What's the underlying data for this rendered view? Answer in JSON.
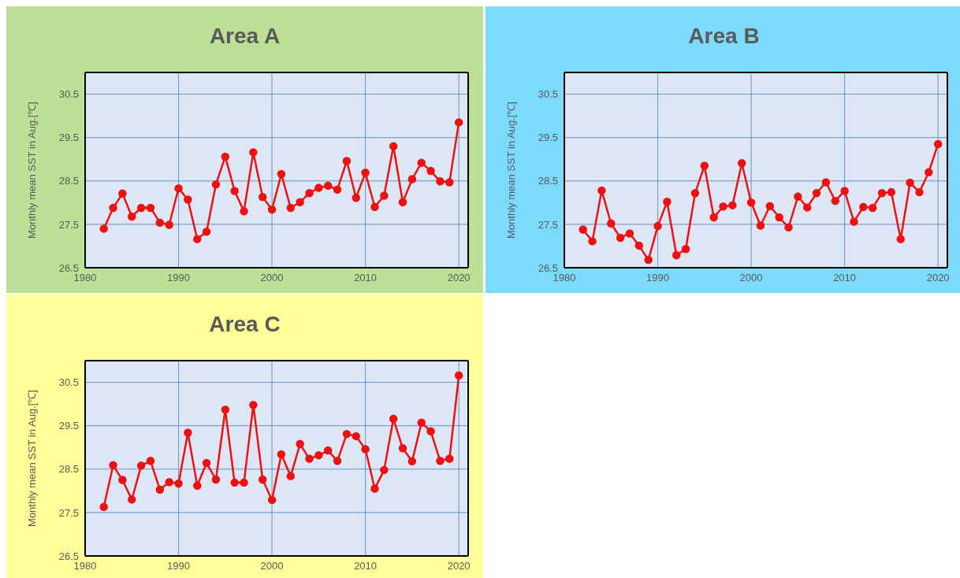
{
  "chart_data": [
    {
      "type": "line",
      "title": "Area A",
      "ylabel": "Monthly mean SST in Aug.[℃]",
      "xlim": [
        1980,
        2021
      ],
      "xticks": [
        1980,
        1990,
        2000,
        2010,
        2020
      ],
      "ylim": [
        26.5,
        31
      ],
      "yticks": [
        26.5,
        27.5,
        28.5,
        29.5,
        30.5
      ],
      "grid": true,
      "marker": "circle",
      "line_style": "solid",
      "legend": false,
      "x": [
        1982,
        1983,
        1984,
        1985,
        1986,
        1987,
        1988,
        1989,
        1990,
        1991,
        1992,
        1993,
        1994,
        1995,
        1996,
        1997,
        1998,
        1999,
        2000,
        2001,
        2002,
        2003,
        2004,
        2005,
        2006,
        2007,
        2008,
        2009,
        2010,
        2011,
        2012,
        2013,
        2014,
        2015,
        2016,
        2017,
        2018,
        2019,
        2020
      ],
      "series": [
        {
          "color": "#ee1111",
          "values": [
            27.4,
            27.88,
            28.21,
            27.68,
            27.88,
            27.88,
            27.54,
            27.49,
            28.33,
            28.07,
            27.16,
            27.33,
            28.42,
            29.06,
            28.27,
            27.8,
            29.16,
            28.13,
            27.84,
            28.66,
            27.88,
            28.01,
            28.22,
            28.34,
            28.39,
            28.3,
            28.96,
            28.11,
            28.69,
            27.9,
            28.16,
            29.3,
            28.01,
            28.54,
            28.92,
            28.73,
            28.49,
            28.47,
            29.85
          ]
        }
      ]
    },
    {
      "type": "line",
      "title": "Area B",
      "ylabel": "Monthly mean SST in Aug.[℃]",
      "xlim": [
        1980,
        2021
      ],
      "xticks": [
        1980,
        1990,
        2000,
        2010,
        2020
      ],
      "ylim": [
        26.5,
        31
      ],
      "yticks": [
        26.5,
        27.5,
        28.5,
        29.5,
        30.5
      ],
      "grid": true,
      "marker": "circle",
      "line_style": "solid",
      "legend": false,
      "x": [
        1982,
        1983,
        1984,
        1985,
        1986,
        1987,
        1988,
        1989,
        1990,
        1991,
        1992,
        1993,
        1994,
        1995,
        1996,
        1997,
        1998,
        1999,
        2000,
        2001,
        2002,
        2003,
        2004,
        2005,
        2006,
        2007,
        2008,
        2009,
        2010,
        2011,
        2012,
        2013,
        2014,
        2015,
        2016,
        2017,
        2018,
        2019,
        2020
      ],
      "series": [
        {
          "color": "#ee1111",
          "values": [
            27.38,
            27.11,
            28.28,
            27.52,
            27.19,
            27.29,
            27.01,
            26.68,
            27.46,
            28.02,
            26.79,
            26.93,
            28.22,
            28.85,
            27.66,
            27.91,
            27.94,
            28.91,
            28.0,
            27.47,
            27.92,
            27.66,
            27.43,
            28.14,
            27.89,
            28.22,
            28.47,
            28.04,
            28.27,
            27.56,
            27.9,
            27.88,
            28.22,
            28.24,
            27.16,
            28.46,
            28.24,
            28.7,
            29.35
          ]
        }
      ]
    },
    {
      "type": "line",
      "title": "Area C",
      "ylabel": "Monthly mean SST in Aug.[℃]",
      "xlim": [
        1980,
        2021
      ],
      "xticks": [
        1980,
        1990,
        2000,
        2010,
        2020
      ],
      "ylim": [
        26.5,
        31
      ],
      "yticks": [
        26.5,
        27.5,
        28.5,
        29.5,
        30.5
      ],
      "grid": true,
      "marker": "circle",
      "line_style": "solid",
      "legend": false,
      "x": [
        1982,
        1983,
        1984,
        1985,
        1986,
        1987,
        1988,
        1989,
        1990,
        1991,
        1992,
        1993,
        1994,
        1995,
        1996,
        1997,
        1998,
        1999,
        2000,
        2001,
        2002,
        2003,
        2004,
        2005,
        2006,
        2007,
        2008,
        2009,
        2010,
        2011,
        2012,
        2013,
        2014,
        2015,
        2016,
        2017,
        2018,
        2019,
        2020
      ],
      "series": [
        {
          "color": "#ee1111",
          "values": [
            27.63,
            28.59,
            28.25,
            27.8,
            28.58,
            28.69,
            28.03,
            28.2,
            28.17,
            29.34,
            28.12,
            28.64,
            28.26,
            29.87,
            28.19,
            28.19,
            29.98,
            28.26,
            27.79,
            28.84,
            28.34,
            29.08,
            28.74,
            28.82,
            28.93,
            28.69,
            29.31,
            29.26,
            28.96,
            28.05,
            28.48,
            29.66,
            28.98,
            28.68,
            29.57,
            29.37,
            28.69,
            28.74,
            30.66
          ]
        }
      ]
    }
  ]
}
